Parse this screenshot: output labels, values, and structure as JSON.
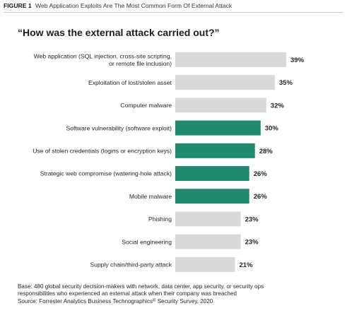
{
  "figure": {
    "number": "FIGURE 1",
    "title": "Web Application Exploits Are The Most Common Form Of External Attack"
  },
  "chart_data": {
    "type": "bar",
    "orientation": "horizontal",
    "title": "“How was the external attack carried out?”",
    "categories": [
      [
        "Web application (SQL injection, cross-site scripting,",
        "or remote file inclusion)"
      ],
      [
        "Exploitation of lost/stolen asset"
      ],
      [
        "Computer malware"
      ],
      [
        "Software vulnerability (software exploit)"
      ],
      [
        "Use of stolen credentials (logins or encryption keys)"
      ],
      [
        "Strategic web compromise (watering-hole attack)"
      ],
      [
        "Mobile malware"
      ],
      [
        "Phishing"
      ],
      [
        "Social engineering"
      ],
      [
        "Supply chain/third-party attack"
      ]
    ],
    "values": [
      39,
      35,
      32,
      30,
      28,
      26,
      26,
      23,
      23,
      21
    ],
    "labels": [
      "39%",
      "35%",
      "32%",
      "30%",
      "28%",
      "26%",
      "26%",
      "23%",
      "23%",
      "21%"
    ],
    "highlighted": [
      false,
      false,
      false,
      true,
      true,
      true,
      true,
      false,
      false,
      false
    ],
    "unit": "%",
    "xlim": [
      0,
      39
    ],
    "grid": false,
    "legend": "none",
    "colors": {
      "highlight": "#1f8a6f",
      "default": "#d9d9d9",
      "text": "#231f20"
    }
  },
  "footnote": {
    "base_line1": "Base: 480 global security decision-makers with network, data center, app security, or security ops",
    "base_line2": "responsibilities who experienced an external attack when their company was breached",
    "source_prefix": "Source: Forrester Analytics Business Technographics",
    "source_mark": "®",
    "source_suffix": " Security Survey, 2020"
  }
}
